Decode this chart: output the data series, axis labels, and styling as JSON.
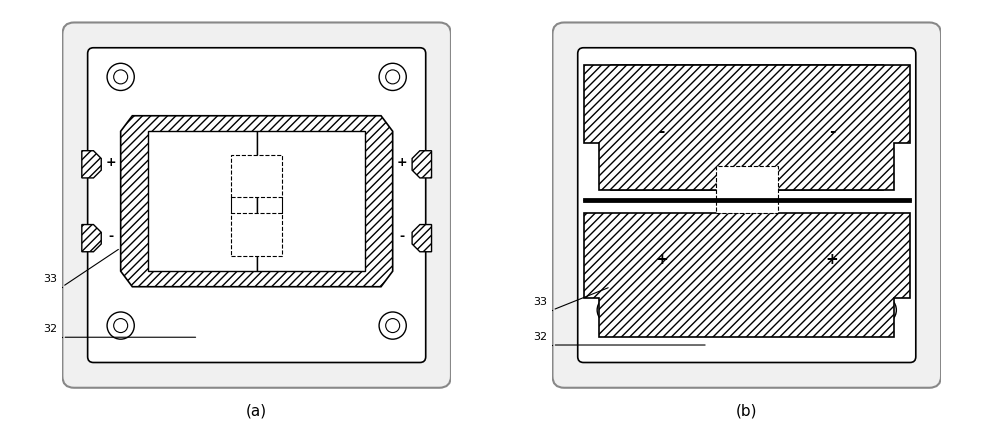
{
  "bg_color": "#ffffff",
  "line_color": "#000000",
  "hatch_color": "#000000",
  "hatch_pattern": "////",
  "label_a": "(a)",
  "label_b": "(b)",
  "label_33": "33",
  "label_32": "32",
  "fig_width": 10.0,
  "fig_height": 4.24
}
